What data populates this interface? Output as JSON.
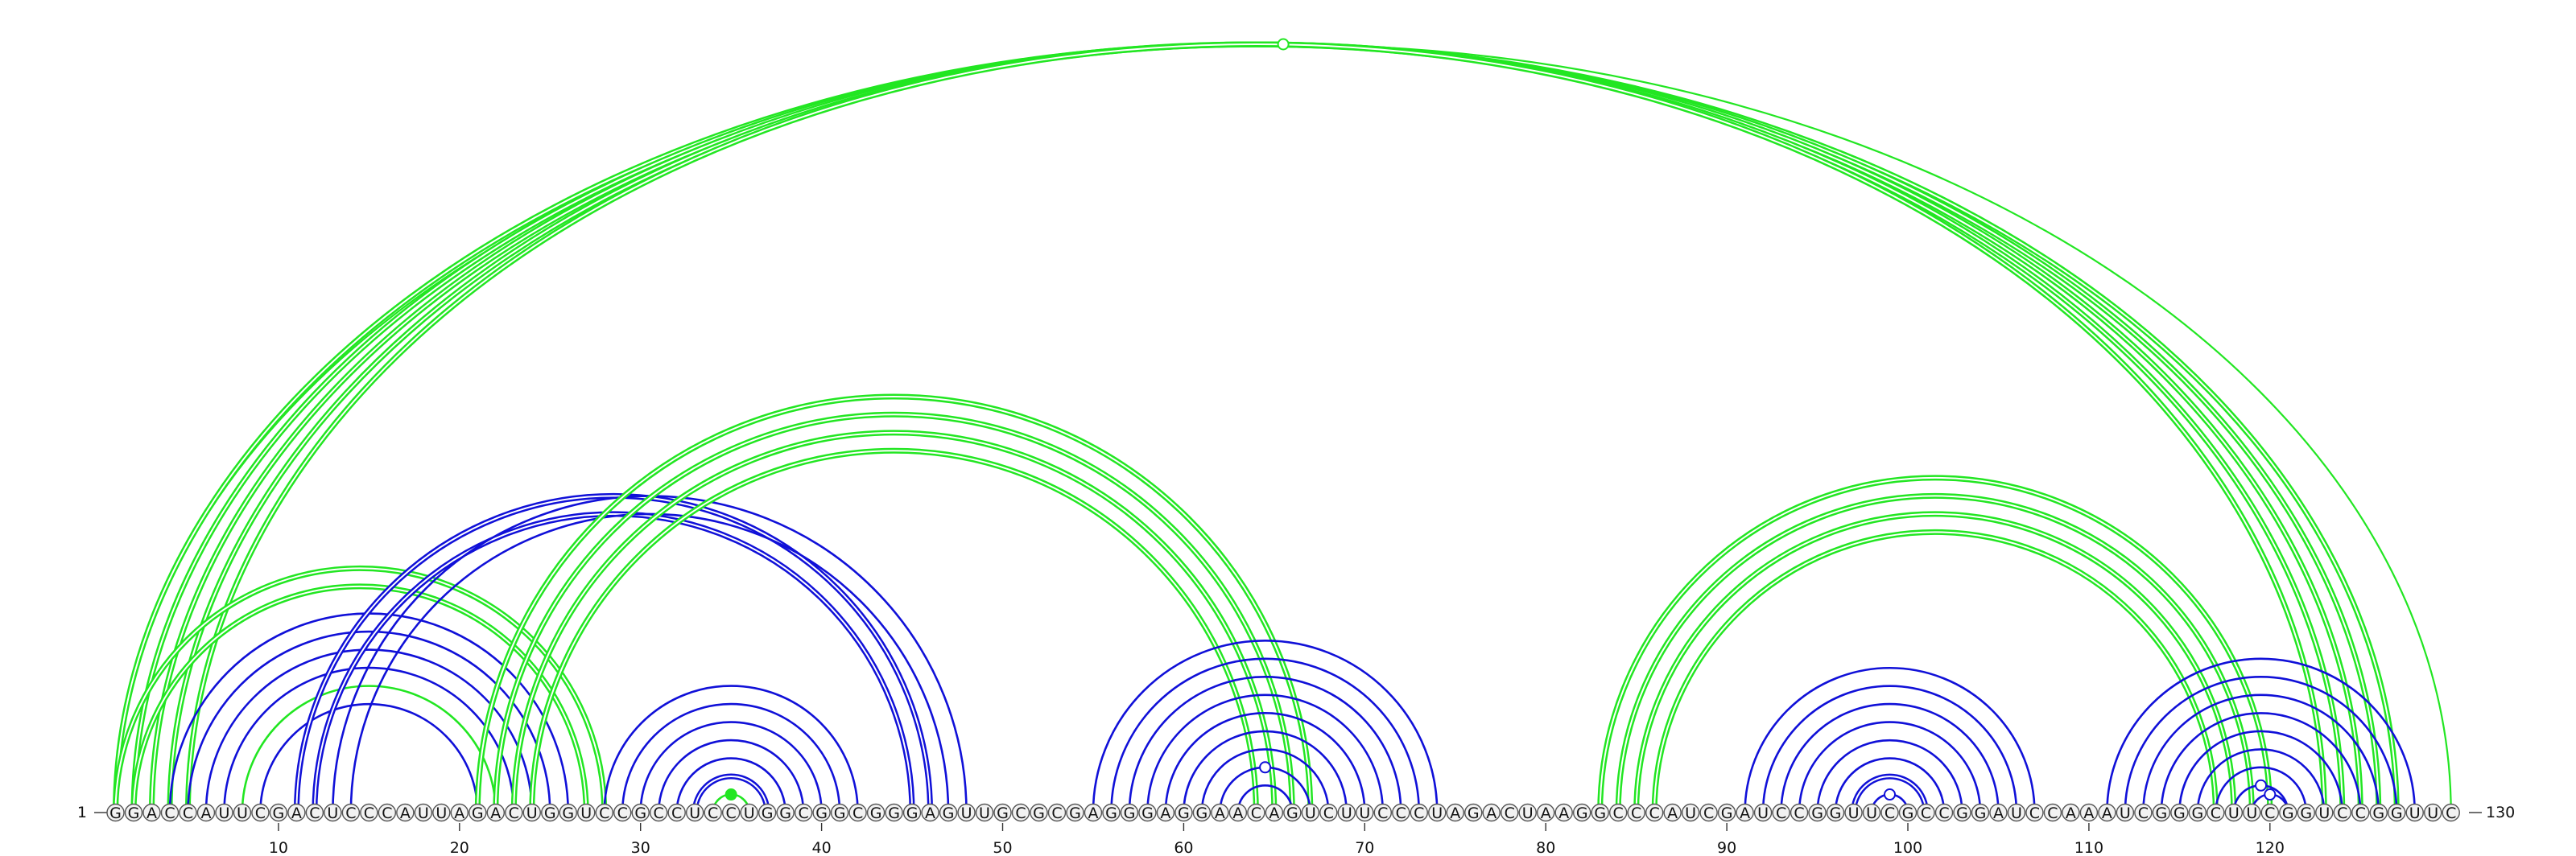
{
  "sequence": "GGACCAUUCGACUCCCAUUAGACUGGUCCGCCUCCUGGCGGCGGGAGUUGCGCGAGGGAGGAACAGUCUUCCCUAGACUAAGGCCCAUCGAUCCGGUUCGCCGGAUCCAAAUCGGGCUUCGGUCCGGUUC",
  "start_label": "1",
  "end_label": "130",
  "ticks": [
    "10",
    "20",
    "30",
    "40",
    "50",
    "60",
    "70",
    "80",
    "90",
    "100",
    "110",
    "120"
  ],
  "colors": {
    "green": "#22e622",
    "blue": "#1010d8",
    "pair_marker": "#ffffff"
  },
  "arcs": [
    {
      "i": 1,
      "j": 130,
      "color": "green",
      "weight": "thin",
      "marker": "open"
    },
    {
      "i": 1,
      "j": 127,
      "color": "green",
      "weight": "double"
    },
    {
      "i": 2,
      "j": 126,
      "color": "green",
      "weight": "double"
    },
    {
      "i": 3,
      "j": 125,
      "color": "green",
      "weight": "double"
    },
    {
      "i": 4,
      "j": 124,
      "color": "green",
      "weight": "double"
    },
    {
      "i": 5,
      "j": 123,
      "color": "green",
      "weight": "double"
    },
    {
      "i": 1,
      "j": 28,
      "color": "green",
      "weight": "double"
    },
    {
      "i": 2,
      "j": 27,
      "color": "green",
      "weight": "double"
    },
    {
      "i": 4,
      "j": 26,
      "color": "blue",
      "weight": "single"
    },
    {
      "i": 5,
      "j": 25,
      "color": "blue",
      "weight": "single"
    },
    {
      "i": 6,
      "j": 24,
      "color": "blue",
      "weight": "single"
    },
    {
      "i": 7,
      "j": 23,
      "color": "blue",
      "weight": "single"
    },
    {
      "i": 8,
      "j": 22,
      "color": "green",
      "weight": "single"
    },
    {
      "i": 9,
      "j": 21,
      "color": "blue",
      "weight": "single"
    },
    {
      "i": 11,
      "j": 46,
      "color": "blue",
      "weight": "double"
    },
    {
      "i": 12,
      "j": 45,
      "color": "blue",
      "weight": "double"
    },
    {
      "i": 13,
      "j": 48,
      "color": "blue",
      "weight": "single"
    },
    {
      "i": 14,
      "j": 47,
      "color": "blue",
      "weight": "single"
    },
    {
      "i": 21,
      "j": 67,
      "color": "green",
      "weight": "double"
    },
    {
      "i": 22,
      "j": 66,
      "color": "green",
      "weight": "double"
    },
    {
      "i": 23,
      "j": 65,
      "color": "green",
      "weight": "double"
    },
    {
      "i": 24,
      "j": 64,
      "color": "green",
      "weight": "double"
    },
    {
      "i": 28,
      "j": 42,
      "color": "blue",
      "weight": "single"
    },
    {
      "i": 29,
      "j": 41,
      "color": "blue",
      "weight": "single"
    },
    {
      "i": 30,
      "j": 40,
      "color": "blue",
      "weight": "single"
    },
    {
      "i": 31,
      "j": 39,
      "color": "blue",
      "weight": "single"
    },
    {
      "i": 32,
      "j": 38,
      "color": "blue",
      "weight": "single"
    },
    {
      "i": 33,
      "j": 37,
      "color": "blue",
      "weight": "double"
    },
    {
      "i": 34,
      "j": 36,
      "color": "green",
      "weight": "single",
      "marker": "filled"
    },
    {
      "i": 55,
      "j": 74,
      "color": "blue",
      "weight": "single"
    },
    {
      "i": 56,
      "j": 73,
      "color": "blue",
      "weight": "single"
    },
    {
      "i": 57,
      "j": 72,
      "color": "blue",
      "weight": "single"
    },
    {
      "i": 58,
      "j": 71,
      "color": "blue",
      "weight": "single"
    },
    {
      "i": 59,
      "j": 70,
      "color": "blue",
      "weight": "single"
    },
    {
      "i": 60,
      "j": 69,
      "color": "blue",
      "weight": "single"
    },
    {
      "i": 61,
      "j": 68,
      "color": "blue",
      "weight": "single"
    },
    {
      "i": 62,
      "j": 67,
      "color": "blue",
      "weight": "single",
      "marker": "open"
    },
    {
      "i": 63,
      "j": 66,
      "color": "blue",
      "weight": "single"
    },
    {
      "i": 83,
      "j": 120,
      "color": "green",
      "weight": "double"
    },
    {
      "i": 84,
      "j": 119,
      "color": "green",
      "weight": "double"
    },
    {
      "i": 85,
      "j": 118,
      "color": "green",
      "weight": "double"
    },
    {
      "i": 86,
      "j": 117,
      "color": "green",
      "weight": "double"
    },
    {
      "i": 91,
      "j": 107,
      "color": "blue",
      "weight": "single"
    },
    {
      "i": 92,
      "j": 106,
      "color": "blue",
      "weight": "single"
    },
    {
      "i": 93,
      "j": 105,
      "color": "blue",
      "weight": "single"
    },
    {
      "i": 94,
      "j": 104,
      "color": "blue",
      "weight": "single"
    },
    {
      "i": 95,
      "j": 103,
      "color": "blue",
      "weight": "single"
    },
    {
      "i": 96,
      "j": 102,
      "color": "blue",
      "weight": "single"
    },
    {
      "i": 97,
      "j": 101,
      "color": "blue",
      "weight": "double"
    },
    {
      "i": 98,
      "j": 100,
      "color": "blue",
      "weight": "single",
      "marker": "open"
    },
    {
      "i": 111,
      "j": 128,
      "color": "blue",
      "weight": "single"
    },
    {
      "i": 112,
      "j": 127,
      "color": "blue",
      "weight": "single"
    },
    {
      "i": 113,
      "j": 126,
      "color": "blue",
      "weight": "single"
    },
    {
      "i": 114,
      "j": 125,
      "color": "blue",
      "weight": "single"
    },
    {
      "i": 115,
      "j": 124,
      "color": "blue",
      "weight": "single"
    },
    {
      "i": 116,
      "j": 123,
      "color": "blue",
      "weight": "single"
    },
    {
      "i": 117,
      "j": 122,
      "color": "blue",
      "weight": "single"
    },
    {
      "i": 118,
      "j": 121,
      "color": "blue",
      "weight": "single",
      "marker": "open"
    },
    {
      "i": 119,
      "j": 121,
      "color": "blue",
      "weight": "single",
      "marker": "open"
    }
  ]
}
